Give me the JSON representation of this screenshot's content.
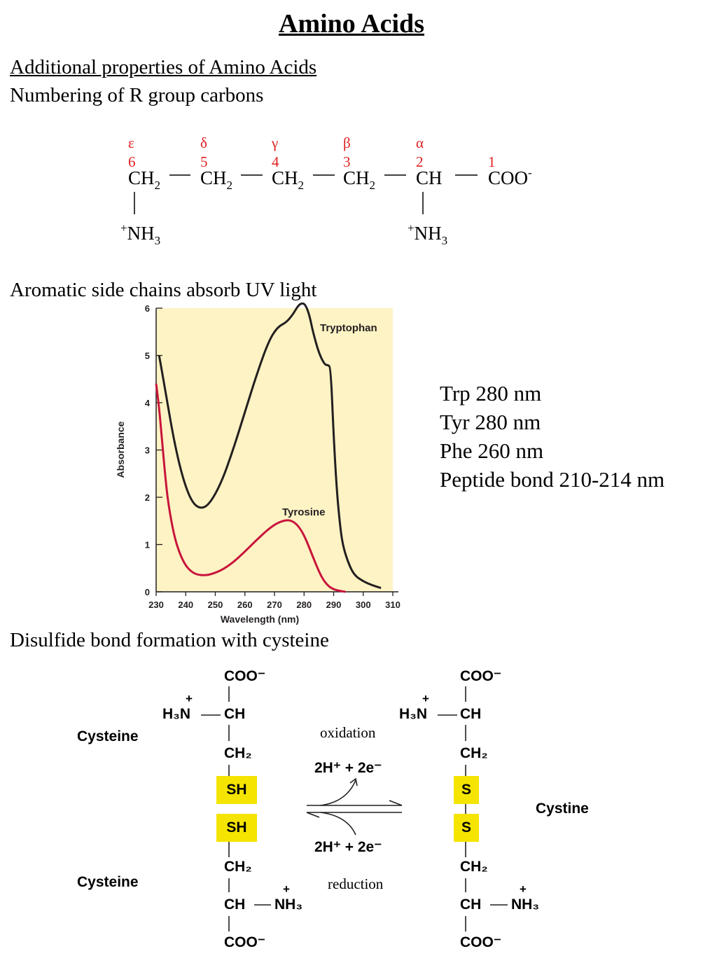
{
  "title": "Amino Acids",
  "section1": {
    "heading": "Additional properties of Amino Acids",
    "subheading": "Numbering of R group carbons"
  },
  "carbon_chain": {
    "greek": [
      "ε",
      "δ",
      "γ",
      "β",
      "α"
    ],
    "numbers": [
      "6",
      "5",
      "4",
      "3",
      "2",
      "1"
    ],
    "groups": [
      "CH",
      "CH",
      "CH",
      "CH",
      "CH",
      "COO"
    ],
    "sub2": "2",
    "minus": "-",
    "amine_left": "NH",
    "amine_right": "NH",
    "plus": "+",
    "sub3": "3"
  },
  "section2": {
    "heading": "Aromatic side chains absorb UV light"
  },
  "notes": [
    "Trp 280 nm",
    "Tyr 280 nm",
    "Phe 260 nm",
    "Peptide bond 210-214 nm"
  ],
  "chart_data": {
    "type": "line",
    "xlabel": "Wavelength (nm)",
    "ylabel": "Absorbance",
    "xlim": [
      230,
      310
    ],
    "ylim": [
      0,
      6
    ],
    "xticks": [
      230,
      240,
      250,
      260,
      270,
      280,
      290,
      300,
      310
    ],
    "yticks": [
      0,
      1,
      2,
      3,
      4,
      5,
      6
    ],
    "background": "#fdf3c4",
    "series": [
      {
        "name": "Tryptophan",
        "color": "#231f20",
        "x": [
          231,
          233,
          236,
          239,
          242,
          245,
          248,
          252,
          256,
          260,
          264,
          268,
          271,
          274,
          276,
          277,
          278,
          279,
          280,
          281,
          282,
          283,
          285,
          287,
          288,
          289,
          290,
          291,
          292,
          293,
          295,
          297,
          300,
          303,
          306
        ],
        "y": [
          5.0,
          4.3,
          3.2,
          2.4,
          1.9,
          1.75,
          1.85,
          2.3,
          3.0,
          3.8,
          4.6,
          5.3,
          5.6,
          5.7,
          5.85,
          5.95,
          6.05,
          6.1,
          6.1,
          6.0,
          5.8,
          5.5,
          5.05,
          4.8,
          4.8,
          4.75,
          3.3,
          2.2,
          1.5,
          1.0,
          0.6,
          0.35,
          0.22,
          0.14,
          0.08
        ]
      },
      {
        "name": "Tyrosine",
        "color": "#c8143c",
        "x": [
          230,
          231,
          232,
          233,
          234,
          236,
          238,
          240,
          242,
          244,
          246,
          248,
          252,
          256,
          260,
          264,
          268,
          271,
          274,
          276,
          278,
          280,
          282,
          284,
          286,
          288,
          290,
          292,
          294
        ],
        "y": [
          4.4,
          3.9,
          3.2,
          2.5,
          1.9,
          1.2,
          0.8,
          0.55,
          0.42,
          0.36,
          0.35,
          0.36,
          0.45,
          0.62,
          0.85,
          1.1,
          1.33,
          1.46,
          1.52,
          1.5,
          1.4,
          1.2,
          0.9,
          0.58,
          0.3,
          0.13,
          0.05,
          0.02,
          0.0
        ]
      }
    ]
  },
  "section3": {
    "heading": "Disulfide bond formation with cysteine"
  },
  "reaction": {
    "left": {
      "cooh_top": "COO⁻",
      "plus": "+",
      "h3n": "H₃N",
      "ch_top": "CH",
      "ch2_top": "CH₂",
      "sh_top": "SH",
      "sh_bottom": "SH",
      "ch2_bottom": "CH₂",
      "ch_bottom": "CH",
      "nh3": "NH₃",
      "cooh_bottom": "COO⁻"
    },
    "right": {
      "cooh_top": "COO⁻",
      "plus": "+",
      "h3n": "H₃N",
      "ch_top": "CH",
      "ch2_top": "CH₂",
      "s_top": "S",
      "s_bottom": "S",
      "ch2_bottom": "CH₂",
      "ch_bottom": "CH",
      "nh3": "NH₃",
      "cooh_bottom": "COO⁻"
    },
    "label_cysteine_top": "Cysteine",
    "label_cysteine_bottom": "Cysteine",
    "label_cystine": "Cystine",
    "oxidation": "oxidation",
    "reduction": "reduction",
    "ox_products": "2H⁺ + 2e⁻",
    "red_reactants": "2H⁺ + 2e⁻",
    "highlight_color": "#f5e400"
  }
}
